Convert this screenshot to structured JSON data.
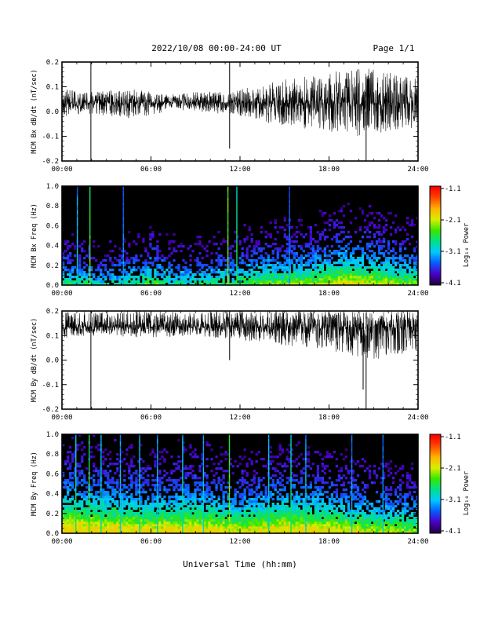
{
  "header": {
    "title": "2022/10/08  00:00-24:00 UT",
    "page": "Page 1/1"
  },
  "footer": {
    "xlabel": "Universal Time (hh:mm)"
  },
  "colors": {
    "trace": "#000000",
    "spectrogram_background": "#000000",
    "colormap": [
      "#200040",
      "#4b00c8",
      "#0a5aff",
      "#00c8ff",
      "#00e08a",
      "#39e600",
      "#d7ef00",
      "#ffb300",
      "#ff4a00",
      "#ff0000"
    ]
  },
  "chart_data": [
    {
      "type": "line",
      "panel": "bx_timeseries",
      "ylabel": "MCM Bx dB/dt (nT/sec)",
      "xlim": [
        "00:00",
        "24:00"
      ],
      "ylim": [
        -0.2,
        0.2
      ],
      "x_ticks": [
        "00:00",
        "06:00",
        "12:00",
        "18:00",
        "24:00"
      ],
      "y_ticks": [
        "-0.2",
        "-0.1",
        "0.0",
        "0.1",
        "0.2"
      ],
      "y_tick_values": [
        -0.2,
        -0.1,
        0.0,
        0.1,
        0.2
      ],
      "baseline": 0.035,
      "envelope": [
        {
          "x": 0,
          "min": -0.02,
          "max": 0.09
        },
        {
          "x": 2,
          "min": -0.01,
          "max": 0.08
        },
        {
          "x": 5,
          "min": -0.03,
          "max": 0.09
        },
        {
          "x": 7,
          "min": 0.0,
          "max": 0.07
        },
        {
          "x": 9,
          "min": 0.0,
          "max": 0.08
        },
        {
          "x": 11,
          "min": -0.01,
          "max": 0.08
        },
        {
          "x": 12,
          "min": -0.02,
          "max": 0.09
        },
        {
          "x": 14,
          "min": -0.05,
          "max": 0.12
        },
        {
          "x": 16,
          "min": -0.07,
          "max": 0.14
        },
        {
          "x": 18,
          "min": -0.08,
          "max": 0.16
        },
        {
          "x": 20,
          "min": -0.1,
          "max": 0.18
        },
        {
          "x": 22,
          "min": -0.08,
          "max": 0.16
        },
        {
          "x": 24,
          "min": -0.07,
          "max": 0.13
        }
      ],
      "spikes": [
        {
          "x": 1.95,
          "min": -0.2,
          "max": 0.2
        },
        {
          "x": 11.3,
          "min": -0.15,
          "max": 0.2
        },
        {
          "x": 20.5,
          "min": -0.2,
          "max": 0.0
        }
      ]
    },
    {
      "type": "heatmap",
      "panel": "bx_spectrogram",
      "ylabel": "MCM Bx Freq (Hz)",
      "xlim": [
        "00:00",
        "24:00"
      ],
      "ylim": [
        0.0,
        1.0
      ],
      "x_ticks": [
        "00:00",
        "06:00",
        "12:00",
        "18:00",
        "24:00"
      ],
      "y_ticks": [
        "0.0",
        "0.2",
        "0.4",
        "0.6",
        "0.8",
        "1.0"
      ],
      "y_tick_values": [
        0.0,
        0.2,
        0.4,
        0.6,
        0.8,
        1.0
      ],
      "colorbar": {
        "label": "Log₁₀ Power",
        "range": [
          -4.1,
          -1.1
        ],
        "ticks": [
          "-1.1",
          "-2.1",
          "-3.1",
          "-4.1"
        ],
        "tick_values": [
          -1.1,
          -2.1,
          -3.1,
          -4.1
        ]
      },
      "activity_profile": [
        {
          "x": 0,
          "level": 0.35
        },
        {
          "x": 3,
          "level": 0.25
        },
        {
          "x": 6,
          "level": 0.4
        },
        {
          "x": 8,
          "level": 0.3
        },
        {
          "x": 11,
          "level": 0.35
        },
        {
          "x": 14,
          "level": 0.45
        },
        {
          "x": 17,
          "level": 0.5
        },
        {
          "x": 19,
          "level": 0.6
        },
        {
          "x": 21,
          "level": 0.55
        },
        {
          "x": 24,
          "level": 0.45
        }
      ],
      "vertical_lines": [
        {
          "x": 1.0,
          "intensity": 0.45
        },
        {
          "x": 1.85,
          "intensity": 0.7
        },
        {
          "x": 4.1,
          "intensity": 0.35
        },
        {
          "x": 11.15,
          "intensity": 0.75
        },
        {
          "x": 11.75,
          "intensity": 0.6
        },
        {
          "x": 15.3,
          "intensity": 0.35
        }
      ]
    },
    {
      "type": "line",
      "panel": "by_timeseries",
      "ylabel": "MCM By dB/dt (nT/sec)",
      "xlim": [
        "00:00",
        "24:00"
      ],
      "ylim": [
        -0.2,
        0.2
      ],
      "x_ticks": [
        "00:00",
        "06:00",
        "12:00",
        "18:00",
        "24:00"
      ],
      "y_ticks": [
        "-0.2",
        "-0.1",
        "0.0",
        "0.1",
        "0.2"
      ],
      "y_tick_values": [
        -0.2,
        -0.1,
        0.0,
        0.1,
        0.2
      ],
      "baseline": 0.135,
      "envelope": [
        {
          "x": 0,
          "min": 0.09,
          "max": 0.2
        },
        {
          "x": 3,
          "min": 0.1,
          "max": 0.2
        },
        {
          "x": 6,
          "min": 0.09,
          "max": 0.2
        },
        {
          "x": 9,
          "min": 0.1,
          "max": 0.2
        },
        {
          "x": 12,
          "min": 0.08,
          "max": 0.2
        },
        {
          "x": 15,
          "min": 0.06,
          "max": 0.2
        },
        {
          "x": 18,
          "min": 0.04,
          "max": 0.2
        },
        {
          "x": 21,
          "min": 0.0,
          "max": 0.2
        },
        {
          "x": 24,
          "min": 0.04,
          "max": 0.2
        }
      ],
      "spikes": [
        {
          "x": 1.95,
          "min": -0.2,
          "max": 0.2
        },
        {
          "x": 11.3,
          "min": 0.0,
          "max": 0.2
        },
        {
          "x": 20.5,
          "min": -0.2,
          "max": 0.1
        },
        {
          "x": 20.3,
          "min": -0.12,
          "max": 0.1
        }
      ]
    },
    {
      "type": "heatmap",
      "panel": "by_spectrogram",
      "ylabel": "MCM By Freq (Hz)",
      "xlim": [
        "00:00",
        "24:00"
      ],
      "ylim": [
        0.0,
        1.0
      ],
      "x_ticks": [
        "00:00",
        "06:00",
        "12:00",
        "18:00",
        "24:00"
      ],
      "y_ticks": [
        "0.0",
        "0.2",
        "0.4",
        "0.6",
        "0.8",
        "1.0"
      ],
      "y_tick_values": [
        0.0,
        0.2,
        0.4,
        0.6,
        0.8,
        1.0
      ],
      "colorbar": {
        "label": "Log₁₀ Power",
        "range": [
          -4.1,
          -1.1
        ],
        "ticks": [
          "-1.1",
          "-2.1",
          "-3.1",
          "-4.1"
        ],
        "tick_values": [
          -1.1,
          -2.1,
          -3.1,
          -4.1
        ]
      },
      "activity_profile": [
        {
          "x": 0,
          "level": 0.75
        },
        {
          "x": 3,
          "level": 0.7
        },
        {
          "x": 6,
          "level": 0.65
        },
        {
          "x": 9,
          "level": 0.7
        },
        {
          "x": 12,
          "level": 0.6
        },
        {
          "x": 15,
          "level": 0.7
        },
        {
          "x": 18,
          "level": 0.65
        },
        {
          "x": 21,
          "level": 0.55
        },
        {
          "x": 24,
          "level": 0.5
        }
      ],
      "vertical_lines": [
        {
          "x": 0.9,
          "intensity": 0.55
        },
        {
          "x": 1.8,
          "intensity": 0.65
        },
        {
          "x": 2.6,
          "intensity": 0.5
        },
        {
          "x": 3.9,
          "intensity": 0.45
        },
        {
          "x": 5.2,
          "intensity": 0.5
        },
        {
          "x": 6.4,
          "intensity": 0.45
        },
        {
          "x": 8.1,
          "intensity": 0.5
        },
        {
          "x": 9.5,
          "intensity": 0.45
        },
        {
          "x": 11.25,
          "intensity": 0.7
        },
        {
          "x": 13.9,
          "intensity": 0.5
        },
        {
          "x": 15.4,
          "intensity": 0.55
        },
        {
          "x": 16.4,
          "intensity": 0.45
        },
        {
          "x": 19.5,
          "intensity": 0.4
        },
        {
          "x": 21.6,
          "intensity": 0.4
        }
      ]
    }
  ]
}
